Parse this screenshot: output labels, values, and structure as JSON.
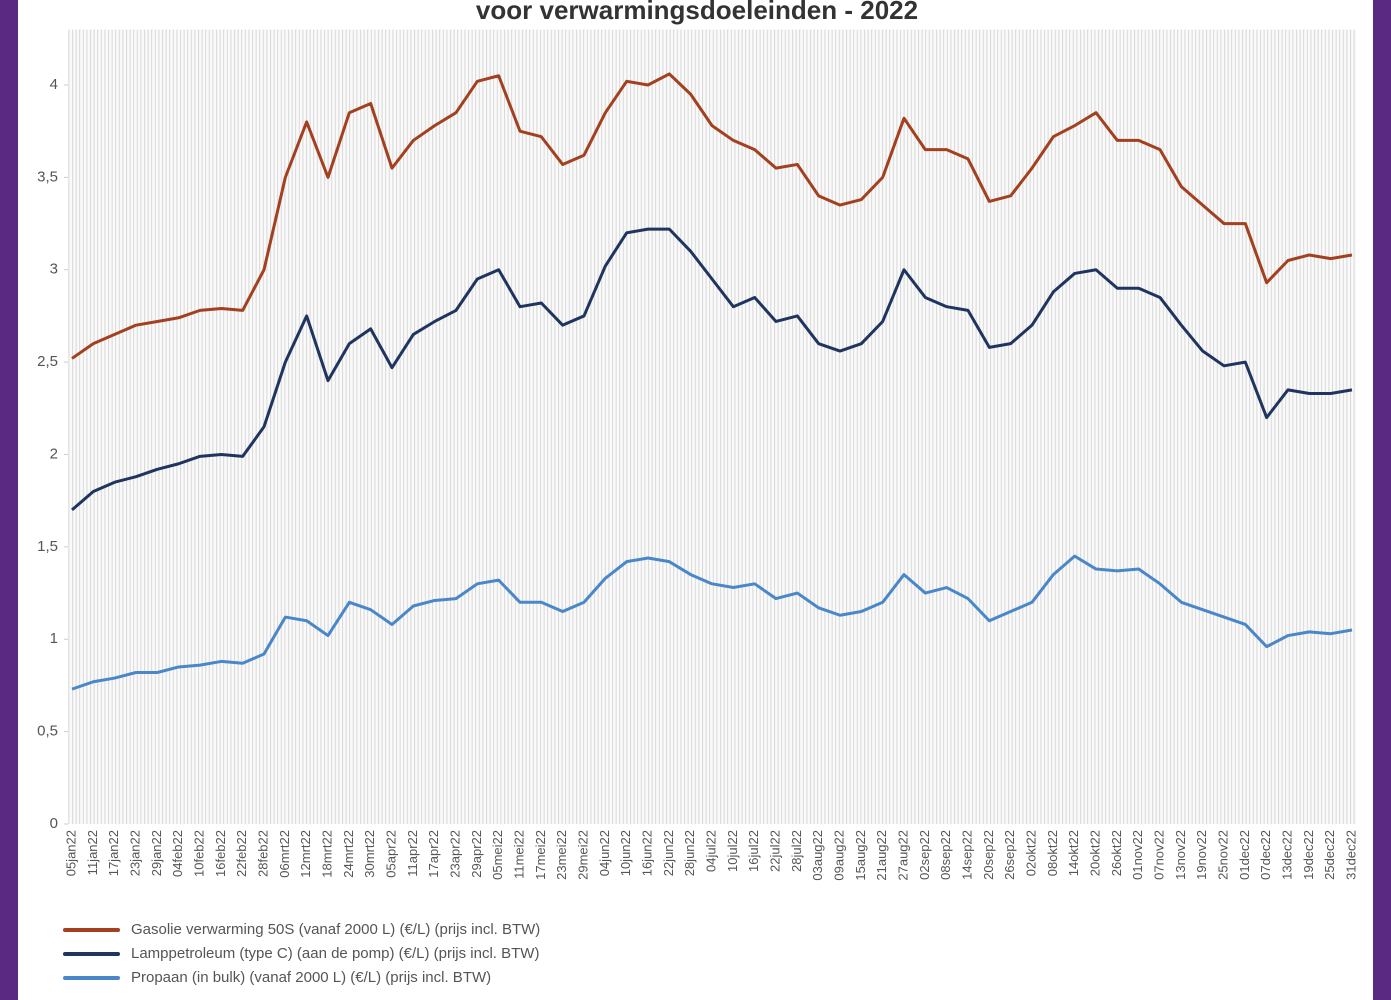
{
  "chart_data": {
    "type": "line",
    "title": "voor verwarmingsdoeleinden - 2022",
    "categories": [
      "05jan22",
      "11jan22",
      "17jan22",
      "23jan22",
      "29jan22",
      "04feb22",
      "10feb22",
      "16feb22",
      "22feb22",
      "28feb22",
      "06mrt22",
      "12mrt22",
      "18mrt22",
      "24mrt22",
      "30mrt22",
      "05apr22",
      "11apr22",
      "17apr22",
      "23apr22",
      "29apr22",
      "05mei22",
      "11mei22",
      "17mei22",
      "23mei22",
      "29mei22",
      "04jun22",
      "10jun22",
      "16jun22",
      "22jun22",
      "28jun22",
      "04jul22",
      "10jul22",
      "16jul22",
      "22jul22",
      "28jul22",
      "03aug22",
      "09aug22",
      "15aug22",
      "21aug22",
      "27aug22",
      "02sep22",
      "08sep22",
      "14sep22",
      "20sep22",
      "26sep22",
      "02okt22",
      "08okt22",
      "14okt22",
      "20okt22",
      "26okt22",
      "01nov22",
      "07nov22",
      "13nov22",
      "19nov22",
      "25nov22",
      "01dec22",
      "07dec22",
      "13dec22",
      "19dec22",
      "25dec22",
      "31dec22"
    ],
    "series": [
      {
        "name": "Gasolie verwarming 50S (vanaf 2000 L) (€/L) (prijs incl. BTW)",
        "color": "#a3401f",
        "values": [
          2.52,
          2.6,
          2.65,
          2.7,
          2.72,
          2.74,
          2.78,
          2.79,
          2.78,
          3.0,
          3.5,
          3.8,
          3.5,
          3.85,
          3.9,
          3.55,
          3.7,
          3.78,
          3.85,
          4.02,
          4.05,
          3.75,
          3.72,
          3.57,
          3.62,
          3.85,
          4.02,
          4.0,
          4.06,
          3.95,
          3.78,
          3.7,
          3.65,
          3.55,
          3.57,
          3.4,
          3.35,
          3.38,
          3.5,
          3.82,
          3.65,
          3.65,
          3.6,
          3.37,
          3.4,
          3.55,
          3.72,
          3.78,
          3.85,
          3.7,
          3.7,
          3.65,
          3.45,
          3.35,
          3.25,
          3.25,
          2.93,
          3.05,
          3.08,
          3.06,
          3.08
        ]
      },
      {
        "name": "Lamppetroleum (type C) (aan de pomp) (€/L) (prijs incl. BTW)",
        "color": "#1f3560",
        "values": [
          1.7,
          1.8,
          1.85,
          1.88,
          1.92,
          1.95,
          1.99,
          2.0,
          1.99,
          2.15,
          2.5,
          2.75,
          2.4,
          2.6,
          2.68,
          2.47,
          2.65,
          2.72,
          2.78,
          2.95,
          3.0,
          2.8,
          2.82,
          2.7,
          2.75,
          3.02,
          3.2,
          3.22,
          3.22,
          3.1,
          2.95,
          2.8,
          2.85,
          2.72,
          2.75,
          2.6,
          2.56,
          2.6,
          2.72,
          3.0,
          2.85,
          2.8,
          2.78,
          2.58,
          2.6,
          2.7,
          2.88,
          2.98,
          3.0,
          2.9,
          2.9,
          2.85,
          2.7,
          2.56,
          2.48,
          2.5,
          2.2,
          2.35,
          2.33,
          2.33,
          2.35
        ]
      },
      {
        "name": "Propaan (in bulk) (vanaf 2000 L) (€/L) (prijs incl. BTW)",
        "color": "#4a87c9",
        "values": [
          0.73,
          0.77,
          0.79,
          0.82,
          0.82,
          0.85,
          0.86,
          0.88,
          0.87,
          0.92,
          1.12,
          1.1,
          1.02,
          1.2,
          1.16,
          1.08,
          1.18,
          1.21,
          1.22,
          1.3,
          1.32,
          1.2,
          1.2,
          1.15,
          1.2,
          1.33,
          1.42,
          1.44,
          1.42,
          1.35,
          1.3,
          1.28,
          1.3,
          1.22,
          1.25,
          1.17,
          1.13,
          1.15,
          1.2,
          1.35,
          1.25,
          1.28,
          1.22,
          1.1,
          1.15,
          1.2,
          1.35,
          1.45,
          1.38,
          1.37,
          1.38,
          1.3,
          1.2,
          1.16,
          1.12,
          1.08,
          0.96,
          1.02,
          1.04,
          1.03,
          1.05
        ]
      }
    ],
    "ylim": [
      0,
      4.3
    ],
    "yticks": [
      0,
      {
        "value": 0.5,
        "label": "0,5"
      },
      1,
      {
        "value": 1.5,
        "label": "1,5"
      },
      2,
      {
        "value": 2.5,
        "label": "2,5"
      },
      3,
      {
        "value": 3.5,
        "label": "3,5"
      },
      4
    ]
  }
}
